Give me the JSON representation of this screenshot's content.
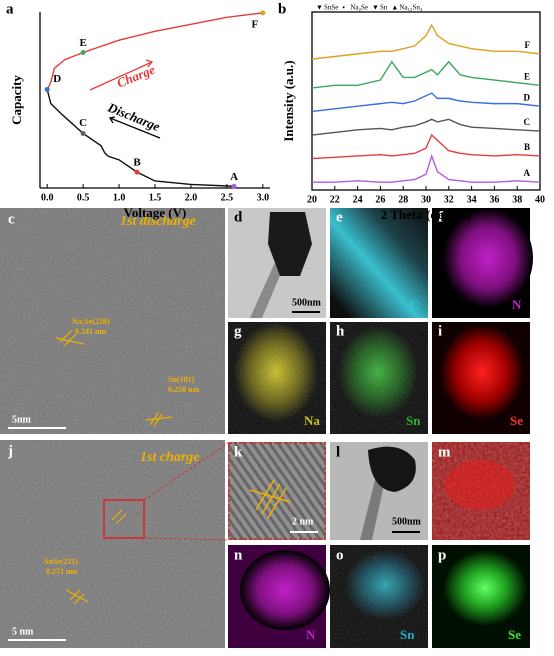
{
  "chart_data": [
    {
      "type": "line",
      "panel": "a",
      "xlabel": "Voltage (V)",
      "ylabel": "Capacity",
      "xlim": [
        -0.1,
        3.1
      ],
      "ylim": [
        0,
        1
      ],
      "xticks": [
        {
          "value": 0,
          "label": "0.0"
        },
        0.5,
        {
          "value": 1,
          "label": "1.0"
        },
        1.5,
        {
          "value": 2,
          "label": "2.0"
        },
        2.5,
        {
          "value": 3,
          "label": "3.0"
        }
      ],
      "series": [
        {
          "name": "Discharge",
          "color": "#111111",
          "x": [
            0,
            0.05,
            0.2,
            0.5,
            0.75,
            0.8,
            0.85,
            1.0,
            1.25,
            1.5,
            2.0,
            2.6
          ],
          "values": [
            0.56,
            0.48,
            0.42,
            0.31,
            0.24,
            0.2,
            0.18,
            0.16,
            0.09,
            0.04,
            0.02,
            0.01
          ]
        },
        {
          "name": "Charge",
          "color": "#e83a3a",
          "x": [
            0,
            0.05,
            0.1,
            0.25,
            0.5,
            1.0,
            1.5,
            2.0,
            2.5,
            3.0
          ],
          "values": [
            0.56,
            0.6,
            0.68,
            0.73,
            0.77,
            0.84,
            0.89,
            0.93,
            0.97,
            0.995
          ]
        }
      ],
      "points": [
        {
          "label": "A",
          "x": 2.6,
          "y": 0.01,
          "color": "#b05ce0"
        },
        {
          "label": "B",
          "x": 1.25,
          "y": 0.09,
          "color": "#e83a3a"
        },
        {
          "label": "C",
          "x": 0.5,
          "y": 0.31,
          "color": "#666666"
        },
        {
          "label": "D",
          "x": 0,
          "y": 0.56,
          "color": "#3a6fd8"
        },
        {
          "label": "E",
          "x": 0.5,
          "y": 0.77,
          "color": "#3aa860"
        },
        {
          "label": "F",
          "x": 3.0,
          "y": 0.995,
          "color": "#e0a020"
        }
      ]
    },
    {
      "type": "line",
      "panel": "b",
      "xlabel": "2 Theta (degree)",
      "ylabel": "Intensity (a.u.)",
      "xlim": [
        20,
        40
      ],
      "ylim": [
        0,
        6.8
      ],
      "xticks": [
        20,
        22,
        24,
        26,
        28,
        30,
        32,
        34,
        36,
        38,
        40
      ],
      "legend": [
        "SnSe",
        "Na₂Se",
        "Sn",
        "Na₁₅Sn₄"
      ],
      "x": [
        20,
        22,
        24,
        26,
        27,
        28,
        29,
        30,
        30.5,
        31,
        32,
        33,
        34,
        36,
        38,
        40
      ],
      "series": [
        {
          "name": "A",
          "color": "#b05ce0",
          "values": [
            0.3,
            0.3,
            0.35,
            0.3,
            0.3,
            0.35,
            0.4,
            0.6,
            1.3,
            0.7,
            0.4,
            0.35,
            0.3,
            0.3,
            0.35,
            0.3
          ]
        },
        {
          "name": "B",
          "color": "#e83a3a",
          "values": [
            1.2,
            1.25,
            1.3,
            1.35,
            1.3,
            1.35,
            1.4,
            1.6,
            2.1,
            1.9,
            1.5,
            1.4,
            1.35,
            1.3,
            1.35,
            1.3
          ]
        },
        {
          "name": "C",
          "color": "#555555",
          "values": [
            2.1,
            2.2,
            2.3,
            2.35,
            2.3,
            2.4,
            2.45,
            2.6,
            2.7,
            2.6,
            2.7,
            2.5,
            2.4,
            2.35,
            2.3,
            2.25
          ]
        },
        {
          "name": "D",
          "color": "#3a6fd8",
          "values": [
            3.0,
            3.1,
            3.2,
            3.3,
            3.35,
            3.3,
            3.4,
            3.6,
            3.7,
            3.5,
            3.5,
            3.4,
            3.35,
            3.3,
            3.3,
            3.2
          ]
        },
        {
          "name": "E",
          "color": "#3aa860",
          "values": [
            3.9,
            4.0,
            4.0,
            4.2,
            4.9,
            4.3,
            4.3,
            4.5,
            4.6,
            4.4,
            4.9,
            4.4,
            4.3,
            4.2,
            4.1,
            4.0
          ]
        },
        {
          "name": "F",
          "color": "#e0a020",
          "values": [
            5.0,
            5.1,
            5.2,
            5.3,
            5.3,
            5.4,
            5.5,
            5.9,
            6.3,
            5.9,
            5.6,
            5.5,
            5.4,
            5.3,
            5.3,
            5.2
          ]
        }
      ]
    }
  ],
  "micrographs": {
    "c": {
      "label": "c",
      "title": "1st discharge",
      "notes": [
        "Na₂Se(220)",
        "0.241 nm",
        "Sn(101)",
        "0.250 nm"
      ],
      "scale": "5nm"
    },
    "d": {
      "label": "d",
      "scale": "500nm"
    },
    "e": {
      "label": "e",
      "element": "C"
    },
    "f": {
      "label": "f",
      "element": "N"
    },
    "g": {
      "label": "g",
      "element": "Na"
    },
    "h": {
      "label": "h",
      "element": "Sn"
    },
    "i": {
      "label": "i",
      "element": "Se"
    },
    "j": {
      "label": "j",
      "title": "1st charge",
      "notes": [
        "SnSe(211)",
        "0.271 nm"
      ],
      "scale": "5 nm"
    },
    "k": {
      "label": "k",
      "scale": "2 nm"
    },
    "l": {
      "label": "l",
      "scale": "500nm"
    },
    "m": {
      "label": "m"
    },
    "n": {
      "label": "n",
      "element": "N"
    },
    "o": {
      "label": "o",
      "element": "Sn"
    },
    "p": {
      "label": "p",
      "element": "Se"
    }
  }
}
